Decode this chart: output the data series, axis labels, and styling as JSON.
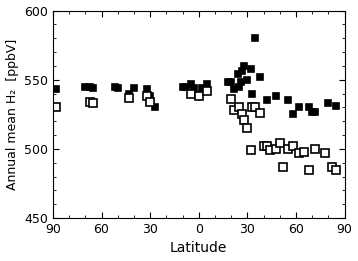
{
  "filled_x": [
    -88,
    -70,
    -67,
    -65,
    -52,
    -50,
    -43,
    -40,
    -32,
    -30,
    -27,
    -10,
    -8,
    -5,
    -3,
    2,
    5,
    18,
    20,
    22,
    24,
    25,
    26,
    27,
    28,
    30,
    32,
    33,
    35,
    38,
    42,
    48,
    55,
    58,
    62,
    68,
    70,
    72,
    80,
    85
  ],
  "filled_y": [
    543,
    545,
    545,
    544,
    545,
    544,
    540,
    544,
    543,
    538,
    530,
    545,
    545,
    547,
    544,
    544,
    547,
    548,
    548,
    543,
    554,
    545,
    548,
    556,
    560,
    550,
    558,
    540,
    580,
    552,
    535,
    538,
    535,
    525,
    530,
    530,
    527,
    527,
    533,
    531
  ],
  "open_x": [
    -88,
    -67,
    -65,
    -43,
    -32,
    -30,
    -5,
    0,
    5,
    20,
    22,
    25,
    27,
    28,
    30,
    32,
    33,
    35,
    38,
    40,
    42,
    44,
    48,
    50,
    52,
    55,
    58,
    62,
    65,
    68,
    72,
    78,
    82,
    85
  ],
  "open_y": [
    530,
    534,
    533,
    537,
    538,
    534,
    540,
    538,
    542,
    536,
    528,
    530,
    525,
    521,
    515,
    499,
    530,
    530,
    526,
    502,
    502,
    499,
    500,
    504,
    487,
    500,
    502,
    497,
    498,
    485,
    500,
    497,
    487,
    485
  ],
  "xlim": [
    -90,
    90
  ],
  "ylim": [
    450,
    600
  ],
  "xticks": [
    -90,
    -60,
    -30,
    0,
    30,
    60,
    90
  ],
  "xticklabels": [
    "90",
    "60",
    "30",
    "0",
    "30",
    "60",
    "90"
  ],
  "yticks": [
    450,
    500,
    550,
    600
  ],
  "xlabel": "Latitude",
  "ylabel": "Annual mean H₂  [ppbV]",
  "filled_marker_size": 5,
  "open_marker_size": 6,
  "marker_edge_width": 1.2,
  "background_color": "#ffffff"
}
